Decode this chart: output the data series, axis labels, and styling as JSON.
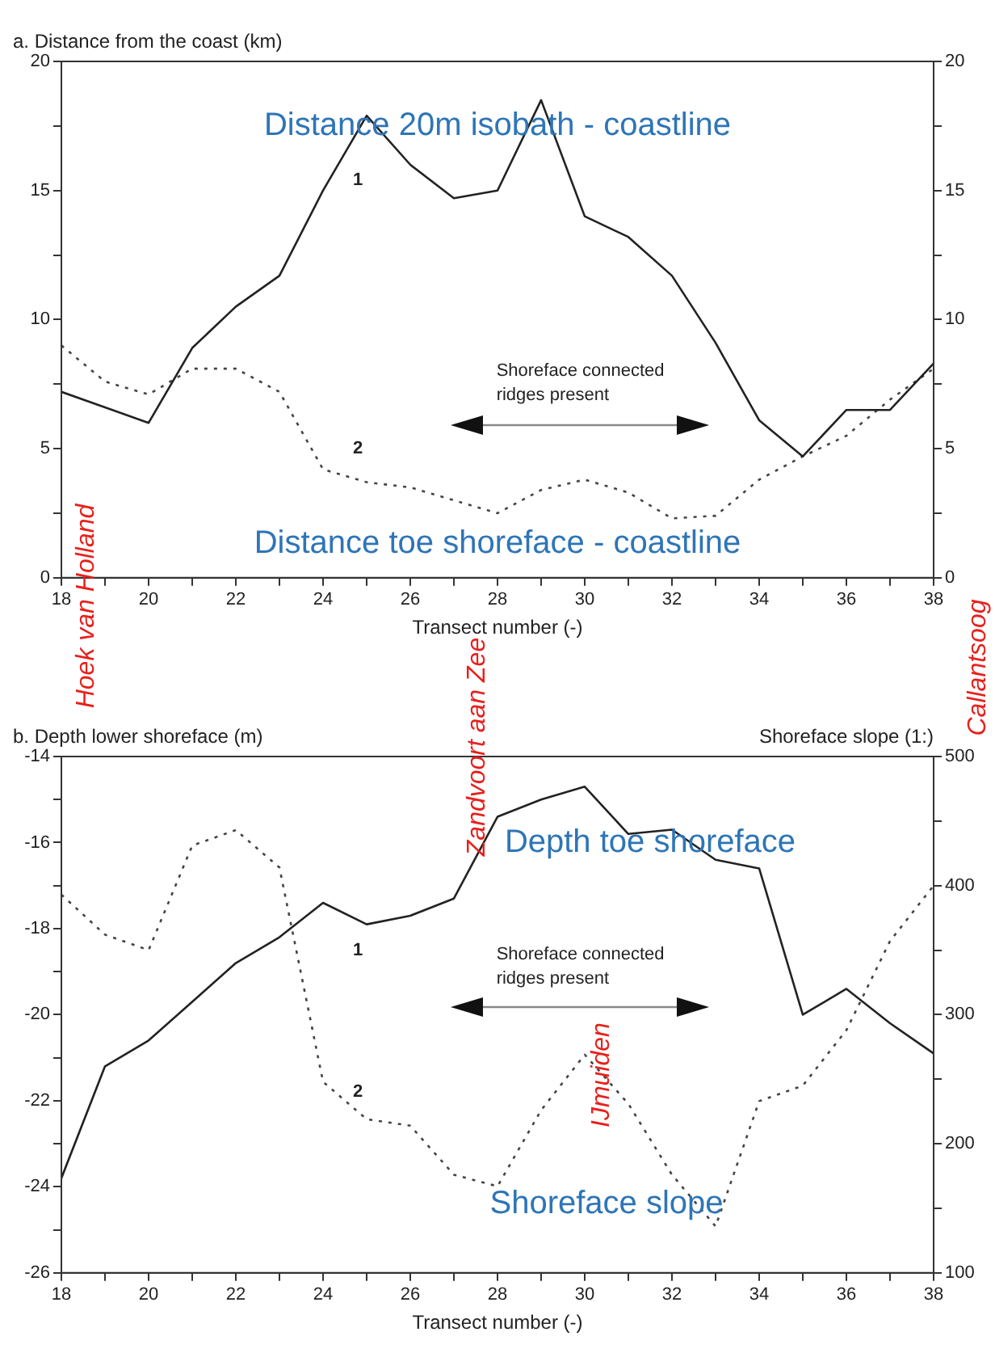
{
  "chart_data": [
    {
      "type": "line",
      "ylabel": "a. Distance from the coast (km)",
      "xlabel": "Transect number (-)",
      "x": [
        18,
        19,
        20,
        21,
        22,
        23,
        24,
        25,
        26,
        27,
        28,
        29,
        30,
        31,
        32,
        33,
        34,
        35,
        36,
        37,
        38
      ],
      "series": [
        {
          "color": "#222222",
          "line_style": "solid",
          "values": [
            7.2,
            6.6,
            6.0,
            8.9,
            10.5,
            11.7,
            15.0,
            17.9,
            16.0,
            14.7,
            15.0,
            18.5,
            14.0,
            13.2,
            11.7,
            9.1,
            6.1,
            4.7,
            6.5,
            6.5,
            8.3
          ]
        },
        {
          "color": "#444444",
          "line_style": "dotted",
          "values": [
            9.0,
            7.6,
            7.1,
            8.1,
            8.1,
            7.2,
            4.2,
            3.7,
            3.5,
            3.0,
            2.5,
            3.4,
            3.8,
            3.3,
            2.3,
            2.4,
            3.8,
            4.7,
            5.5,
            6.9,
            8.1
          ]
        }
      ],
      "xlim": [
        18,
        38
      ],
      "xticks": [
        18,
        {
          "value": 19,
          "label": null
        },
        20,
        {
          "value": 21,
          "label": null
        },
        22,
        {
          "value": 23,
          "label": null
        },
        24,
        {
          "value": 25,
          "label": null
        },
        26,
        {
          "value": 27,
          "label": null
        },
        28,
        {
          "value": 29,
          "label": null
        },
        30,
        {
          "value": 31,
          "label": null
        },
        32,
        {
          "value": 33,
          "label": null
        },
        34,
        {
          "value": 35,
          "label": null
        },
        36,
        {
          "value": 37,
          "label": null
        },
        38
      ],
      "ylim": [
        0,
        20
      ],
      "yticks": [
        0,
        {
          "value": 2.5,
          "label": null
        },
        5,
        {
          "value": 7.5,
          "label": null
        },
        10,
        {
          "value": 12.5,
          "label": null
        },
        15,
        {
          "value": 17.5,
          "label": null
        },
        20
      ],
      "y2lim": [
        0,
        20
      ],
      "y2ticks": [
        0,
        {
          "value": 2.5,
          "label": null
        },
        5,
        {
          "value": 7.5,
          "label": null
        },
        10,
        {
          "value": 12.5,
          "label": null
        },
        15,
        {
          "value": 17.5,
          "label": null
        },
        20
      ],
      "marker": "none",
      "grid": false,
      "legend": false,
      "annotations": [
        "Distance 20m isobath - coastline",
        "Distance toe shoreface - coastline",
        "1",
        "2",
        "Shoreface connected ridges present"
      ]
    },
    {
      "type": "line",
      "ylabel": "b. Depth lower shoreface (m)",
      "y2label": "Shoreface slope (1:)",
      "xlabel": "Transect number (-)",
      "x": [
        18,
        19,
        20,
        21,
        22,
        23,
        24,
        25,
        26,
        27,
        28,
        29,
        30,
        31,
        32,
        33,
        34,
        35,
        36,
        37,
        38
      ],
      "series": [
        {
          "color": "#222222",
          "line_style": "solid",
          "values": [
            -23.8,
            -21.2,
            -20.6,
            -19.7,
            -18.8,
            -18.2,
            -17.4,
            -17.9,
            -17.7,
            -17.3,
            -15.4,
            -15.0,
            -14.7,
            -15.8,
            -15.7,
            -16.4,
            -16.6,
            -20.0,
            -19.4,
            -20.2,
            -20.9
          ]
        },
        {
          "color": "#444444",
          "line_style": "dotted",
          "axis": "y2",
          "values": [
            393,
            362,
            350,
            431,
            443,
            414,
            248,
            219,
            214,
            176,
            167,
            226,
            269,
            231,
            176,
            136,
            233,
            245,
            288,
            357,
            400
          ]
        }
      ],
      "xlim": [
        18,
        38
      ],
      "xticks": [
        18,
        {
          "value": 19,
          "label": null
        },
        20,
        {
          "value": 21,
          "label": null
        },
        22,
        {
          "value": 23,
          "label": null
        },
        24,
        {
          "value": 25,
          "label": null
        },
        26,
        {
          "value": 27,
          "label": null
        },
        28,
        {
          "value": 29,
          "label": null
        },
        30,
        {
          "value": 31,
          "label": null
        },
        32,
        {
          "value": 33,
          "label": null
        },
        34,
        {
          "value": 35,
          "label": null
        },
        36,
        {
          "value": 37,
          "label": null
        },
        38
      ],
      "ylim": [
        -26,
        -14
      ],
      "yticks": [
        -26,
        {
          "value": -25,
          "label": null
        },
        -24,
        {
          "value": -23,
          "label": null
        },
        -22,
        {
          "value": -21,
          "label": null
        },
        -20,
        {
          "value": -19,
          "label": null
        },
        -18,
        {
          "value": -17,
          "label": null
        },
        -16,
        {
          "value": -15,
          "label": null
        },
        -14
      ],
      "y2lim": [
        100,
        500
      ],
      "y2ticks": [
        100,
        {
          "value": 150,
          "label": null
        },
        200,
        {
          "value": 250,
          "label": null
        },
        300,
        {
          "value": 350,
          "label": null
        },
        400,
        {
          "value": 450,
          "label": null
        },
        500
      ],
      "marker": "none",
      "grid": false,
      "legend": false,
      "annotations": [
        "Depth toe shoreface",
        "Shoreface slope",
        "1",
        "2",
        "Shoreface connected ridges present",
        "Hoek van Holland",
        "Zandvoort aan Zee",
        "Callantsoog",
        "IJmuiden"
      ]
    }
  ]
}
